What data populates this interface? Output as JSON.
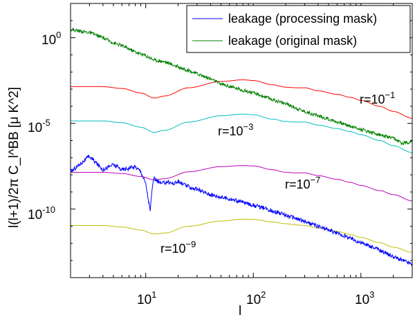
{
  "chart_data": {
    "type": "line",
    "x_scale": "log",
    "y_scale": "log",
    "xlabel": "l",
    "ylabel": "l(l+1)/2π C_l^BB [μ K^2]",
    "xlim": [
      2,
      3000
    ],
    "ylim": [
      1e-14,
      100.0
    ],
    "x_ticks": [
      {
        "value": 10,
        "base": "10",
        "exp": "1"
      },
      {
        "value": 100,
        "base": "10",
        "exp": "2"
      },
      {
        "value": 1000,
        "base": "10",
        "exp": "3"
      }
    ],
    "y_ticks": [
      {
        "value": 1e-10,
        "base": "10",
        "exp": "-10"
      },
      {
        "value": 1e-05,
        "base": "10",
        "exp": "-5"
      },
      {
        "value": 1,
        "base": "10",
        "exp": "0"
      }
    ],
    "legend": {
      "position": "top-right",
      "entries": [
        {
          "label": "leakage (processing mask)",
          "color": "#0000ff"
        },
        {
          "label": "leakage (original mask)",
          "color": "#007f00"
        }
      ]
    },
    "annotations": [
      {
        "text_base": "r=10",
        "text_exp": "−1",
        "x": 500,
        "y": 0.0012
      },
      {
        "text_base": "r=10",
        "text_exp": "−3",
        "x": 35,
        "y": 1e-06
      },
      {
        "text_base": "r=10",
        "text_exp": "−7",
        "x": 220,
        "y": 3e-08
      },
      {
        "text_base": "r=10",
        "text_exp": "−9",
        "x": 15,
        "y": 8e-13
      }
    ],
    "series": [
      {
        "name": "r=1e-1",
        "color": "#ff0000",
        "noise": 0,
        "points": [
          [
            2,
            0.0014
          ],
          [
            4,
            0.0014
          ],
          [
            6,
            0.0011
          ],
          [
            9,
            0.0006
          ],
          [
            12,
            0.0003
          ],
          [
            15,
            0.0004
          ],
          [
            25,
            0.0012
          ],
          [
            50,
            0.0028
          ],
          [
            80,
            0.0035
          ],
          [
            100,
            0.0032
          ],
          [
            150,
            0.0018
          ],
          [
            200,
            0.0013
          ],
          [
            250,
            0.0012
          ],
          [
            300,
            0.0012
          ],
          [
            400,
            0.0008
          ],
          [
            600,
            0.0005
          ],
          [
            800,
            0.00033
          ],
          [
            1000,
            0.00022
          ],
          [
            1500,
            0.0001
          ],
          [
            2000,
            5e-05
          ],
          [
            3000,
            2e-05
          ]
        ]
      },
      {
        "name": "r=1e-3",
        "color": "#00bfbf",
        "noise": 0,
        "points": [
          [
            2,
            1.4e-05
          ],
          [
            4,
            1.4e-05
          ],
          [
            6,
            1.1e-05
          ],
          [
            9,
            6e-06
          ],
          [
            12,
            3e-06
          ],
          [
            15,
            4e-06
          ],
          [
            25,
            1.2e-05
          ],
          [
            50,
            2.8e-05
          ],
          [
            80,
            3.5e-05
          ],
          [
            100,
            3.2e-05
          ],
          [
            150,
            1.8e-05
          ],
          [
            200,
            1.3e-05
          ],
          [
            250,
            1.2e-05
          ],
          [
            300,
            1.2e-05
          ],
          [
            400,
            8e-06
          ],
          [
            600,
            5e-06
          ],
          [
            800,
            3.3e-06
          ],
          [
            1000,
            2.2e-06
          ],
          [
            1500,
            1e-06
          ],
          [
            2000,
            5e-07
          ],
          [
            3000,
            2e-07
          ]
        ]
      },
      {
        "name": "r=1e-7",
        "color": "#bf00bf",
        "noise": 0,
        "points": [
          [
            2,
            1.4e-08
          ],
          [
            4,
            1.4e-08
          ],
          [
            6,
            1.2e-08
          ],
          [
            9,
            8e-09
          ],
          [
            12,
            5e-09
          ],
          [
            15,
            6e-09
          ],
          [
            25,
            1.5e-08
          ],
          [
            50,
            3e-08
          ],
          [
            80,
            3.5e-08
          ],
          [
            100,
            3.3e-08
          ],
          [
            150,
            2e-08
          ],
          [
            200,
            1.4e-08
          ],
          [
            250,
            1.3e-08
          ],
          [
            300,
            1.3e-08
          ],
          [
            400,
            9e-09
          ],
          [
            600,
            5.5e-09
          ],
          [
            800,
            3.6e-09
          ],
          [
            1000,
            2.4e-09
          ],
          [
            1500,
            1.2e-09
          ],
          [
            2000,
            7e-10
          ],
          [
            3000,
            3e-10
          ]
        ]
      },
      {
        "name": "r=1e-9",
        "color": "#bfbf00",
        "noise": 0,
        "points": [
          [
            2,
            1.1e-11
          ],
          [
            4,
            1.1e-11
          ],
          [
            6,
            9e-12
          ],
          [
            9,
            6e-12
          ],
          [
            12,
            3.5e-12
          ],
          [
            15,
            4e-12
          ],
          [
            25,
            1e-11
          ],
          [
            50,
            2e-11
          ],
          [
            80,
            2.6e-11
          ],
          [
            100,
            2.5e-11
          ],
          [
            150,
            1.8e-11
          ],
          [
            200,
            1.4e-11
          ],
          [
            250,
            1.2e-11
          ],
          [
            300,
            1.1e-11
          ],
          [
            400,
            8e-12
          ],
          [
            600,
            5e-12
          ],
          [
            800,
            3.3e-12
          ],
          [
            1000,
            2.2e-12
          ],
          [
            1500,
            1.1e-12
          ],
          [
            2000,
            6e-13
          ],
          [
            3000,
            3e-13
          ]
        ]
      },
      {
        "name": "leakage (processing mask)",
        "color": "#0000ff",
        "noise": 0.12,
        "points": [
          [
            2,
            1.5e-08
          ],
          [
            3,
            1.2e-07
          ],
          [
            4,
            2e-08
          ],
          [
            5,
            4e-08
          ],
          [
            6,
            2e-08
          ],
          [
            8,
            3e-08
          ],
          [
            9,
            1.6e-08
          ],
          [
            10,
            3e-09
          ],
          [
            11,
            8e-11
          ],
          [
            11.5,
            2e-09
          ],
          [
            12,
            6e-09
          ],
          [
            14,
            3e-09
          ],
          [
            16,
            4e-09
          ],
          [
            18,
            3e-09
          ],
          [
            20,
            4e-09
          ],
          [
            25,
            2e-09
          ],
          [
            30,
            1.4e-09
          ],
          [
            40,
            7e-10
          ],
          [
            50,
            5e-10
          ],
          [
            60,
            4e-10
          ],
          [
            80,
            2.5e-10
          ],
          [
            100,
            1.7e-10
          ],
          [
            150,
            8e-11
          ],
          [
            200,
            4.5e-11
          ],
          [
            300,
            1.9e-11
          ],
          [
            500,
            6e-12
          ],
          [
            800,
            2e-12
          ],
          [
            1000,
            1.1e-12
          ],
          [
            1500,
            4e-13
          ],
          [
            2000,
            1.7e-13
          ],
          [
            3000,
            6e-14
          ]
        ]
      },
      {
        "name": "leakage (original mask)",
        "color": "#007f00",
        "noise": 0.1,
        "points": [
          [
            2,
            3
          ],
          [
            3,
            2
          ],
          [
            4,
            1
          ],
          [
            5,
            0.5
          ],
          [
            6,
            0.35
          ],
          [
            8,
            0.15
          ],
          [
            10,
            0.09
          ],
          [
            12,
            0.05
          ],
          [
            15,
            0.04
          ],
          [
            20,
            0.02
          ],
          [
            30,
            0.008
          ],
          [
            40,
            0.004
          ],
          [
            50,
            0.002
          ],
          [
            70,
            0.0011
          ],
          [
            100,
            0.0006
          ],
          [
            150,
            0.00025
          ],
          [
            200,
            0.00014
          ],
          [
            300,
            5e-05
          ],
          [
            500,
            1.8e-05
          ],
          [
            800,
            7e-06
          ],
          [
            1000,
            4.5e-06
          ],
          [
            1500,
            2.2e-06
          ],
          [
            2000,
            1.3e-06
          ],
          [
            2400,
            7e-07
          ],
          [
            2800,
            8e-07
          ],
          [
            3000,
            1.1e-06
          ]
        ]
      }
    ]
  }
}
